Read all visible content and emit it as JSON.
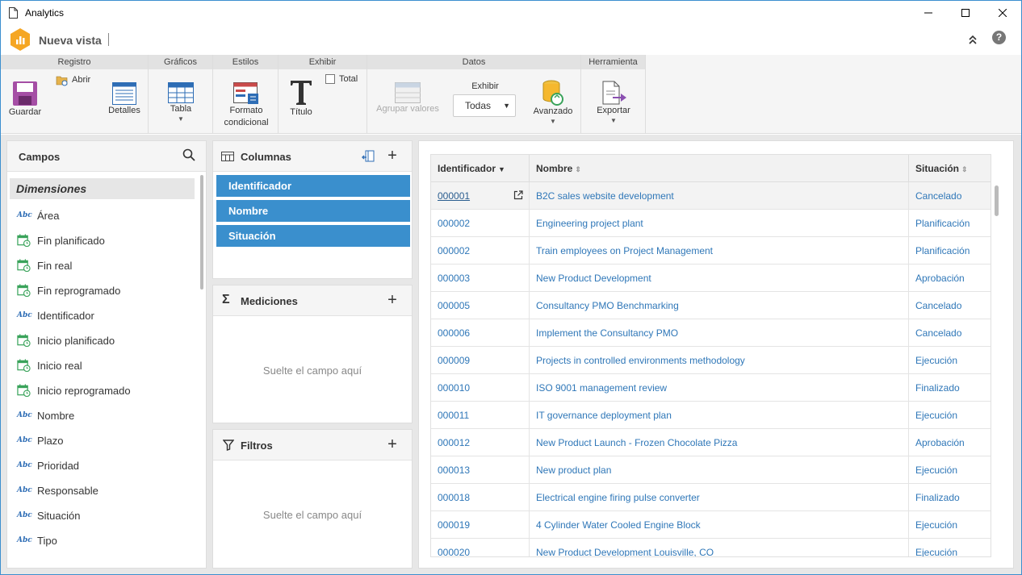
{
  "window": {
    "title": "Analytics"
  },
  "app": {
    "name": "Nueva vista"
  },
  "ribbon": {
    "registro": {
      "header": "Registro",
      "guardar": "Guardar",
      "abrir": "Abrir",
      "detalles": "Detalles"
    },
    "graficos": {
      "header": "Gráficos",
      "tabla": "Tabla"
    },
    "estilos": {
      "header": "Estilos",
      "formato": "Formato",
      "condicional": "condicional"
    },
    "exhibir": {
      "header": "Exhibir",
      "titulo": "Título",
      "total": "Total"
    },
    "datos": {
      "header": "Datos",
      "agrupar": "Agrupar valores",
      "exhibir_label": "Exhibir",
      "exhibir_value": "Todas",
      "avanzado": "Avanzado"
    },
    "herramienta": {
      "header": "Herramienta",
      "exportar": "Exportar"
    }
  },
  "campos": {
    "title": "Campos",
    "section": "Dimensiones",
    "items": [
      {
        "label": "Área",
        "type": "text",
        "icon": "abc"
      },
      {
        "label": "Fin planificado",
        "type": "date"
      },
      {
        "label": "Fin real",
        "type": "date"
      },
      {
        "label": "Fin reprogramado",
        "type": "date"
      },
      {
        "label": "Identificador",
        "type": "text",
        "icon": "abc"
      },
      {
        "label": "Inicio planificado",
        "type": "date"
      },
      {
        "label": "Inicio real",
        "type": "date"
      },
      {
        "label": "Inicio reprogramado",
        "type": "date"
      },
      {
        "label": "Nombre",
        "type": "text",
        "icon": "abc"
      },
      {
        "label": "Plazo",
        "type": "text",
        "icon": "abc"
      },
      {
        "label": "Prioridad",
        "type": "text",
        "icon": "abc"
      },
      {
        "label": "Responsable",
        "type": "text",
        "icon": "abc"
      },
      {
        "label": "Situación",
        "type": "text",
        "icon": "abc"
      },
      {
        "label": "Tipo",
        "type": "text",
        "icon": "abc"
      }
    ]
  },
  "columnas": {
    "title": "Columnas",
    "items": [
      "Identificador",
      "Nombre",
      "Situación"
    ]
  },
  "mediciones": {
    "title": "Mediciones",
    "drop": "Suelte el campo aquí"
  },
  "filtros": {
    "title": "Filtros",
    "drop": "Suelte el campo aquí"
  },
  "table": {
    "headers": [
      "Identificador",
      "Nombre",
      "Situación"
    ],
    "rows": [
      [
        "000001",
        "B2C sales website development",
        "Cancelado"
      ],
      [
        "000002",
        "Engineering project plant",
        "Planificación"
      ],
      [
        "000002",
        "Train employees on Project Management",
        "Planificación"
      ],
      [
        "000003",
        "New Product Development",
        "Aprobación"
      ],
      [
        "000005",
        "Consultancy PMO Benchmarking",
        "Cancelado"
      ],
      [
        "000006",
        "Implement the Consultancy PMO",
        "Cancelado"
      ],
      [
        "000009",
        "Projects in controlled environments methodology",
        "Ejecución"
      ],
      [
        "000010",
        "ISO 9001 management review",
        "Finalizado"
      ],
      [
        "000011",
        "IT governance deployment plan",
        "Ejecución"
      ],
      [
        "000012",
        "New Product Launch - Frozen Chocolate Pizza",
        "Aprobación"
      ],
      [
        "000013",
        "New product plan",
        "Ejecución"
      ],
      [
        "000018",
        "Electrical engine firing pulse converter",
        "Finalizado"
      ],
      [
        "000019",
        "4 Cylinder Water Cooled Engine Block",
        "Ejecución"
      ],
      [
        "000020",
        "New Product Development Louisville, CO",
        "Ejecución"
      ]
    ]
  },
  "colors": {
    "accent": "#3a8fcd",
    "link": "#2f77b8",
    "logo": "#f5a623",
    "date_icon": "#3aa35b"
  }
}
